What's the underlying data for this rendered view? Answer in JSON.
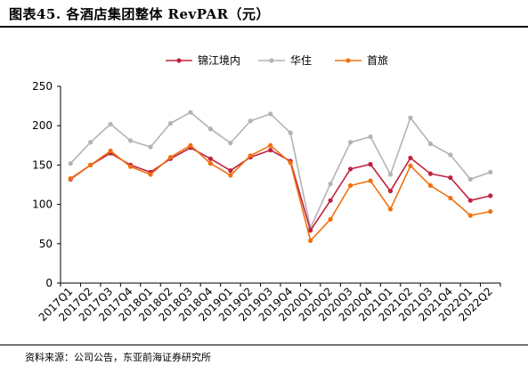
{
  "header": {
    "title": "图表45. 各酒店集团整体 RevPAR（元）"
  },
  "footer": {
    "source": "资料来源：公司公告，东亚前海证券研究所"
  },
  "chart_data": {
    "type": "line",
    "categories": [
      "2017Q1",
      "2017Q2",
      "2017Q3",
      "2017Q4",
      "2018Q1",
      "2018Q2",
      "2018Q3",
      "2018Q4",
      "2019Q1",
      "2019Q2",
      "2019Q3",
      "2019Q4",
      "2020Q1",
      "2020Q2",
      "2020Q3",
      "2020Q4",
      "2021Q1",
      "2021Q2",
      "2021Q3",
      "2021Q4",
      "2022Q1",
      "2022Q2"
    ],
    "ylim": [
      0,
      250
    ],
    "yticks": [
      0,
      50,
      100,
      150,
      200,
      250
    ],
    "grid": false,
    "legend_position": "top-center",
    "series": [
      {
        "name": "锦江境内",
        "color": "#c0223f",
        "values": [
          132,
          150,
          165,
          150,
          141,
          158,
          172,
          158,
          143,
          160,
          169,
          155,
          67,
          105,
          145,
          151,
          117,
          159,
          139,
          134,
          105,
          111
        ]
      },
      {
        "name": "华住",
        "color": "#b3b3b3",
        "values": [
          152,
          179,
          202,
          181,
          173,
          203,
          217,
          196,
          178,
          206,
          215,
          191,
          70,
          126,
          179,
          186,
          138,
          210,
          177,
          163,
          132,
          141
        ]
      },
      {
        "name": "首旅",
        "color": "#f0700f",
        "values": [
          133,
          150,
          168,
          148,
          138,
          160,
          175,
          152,
          137,
          162,
          175,
          153,
          54,
          81,
          124,
          130,
          94,
          149,
          124,
          108,
          86,
          91
        ]
      }
    ]
  }
}
